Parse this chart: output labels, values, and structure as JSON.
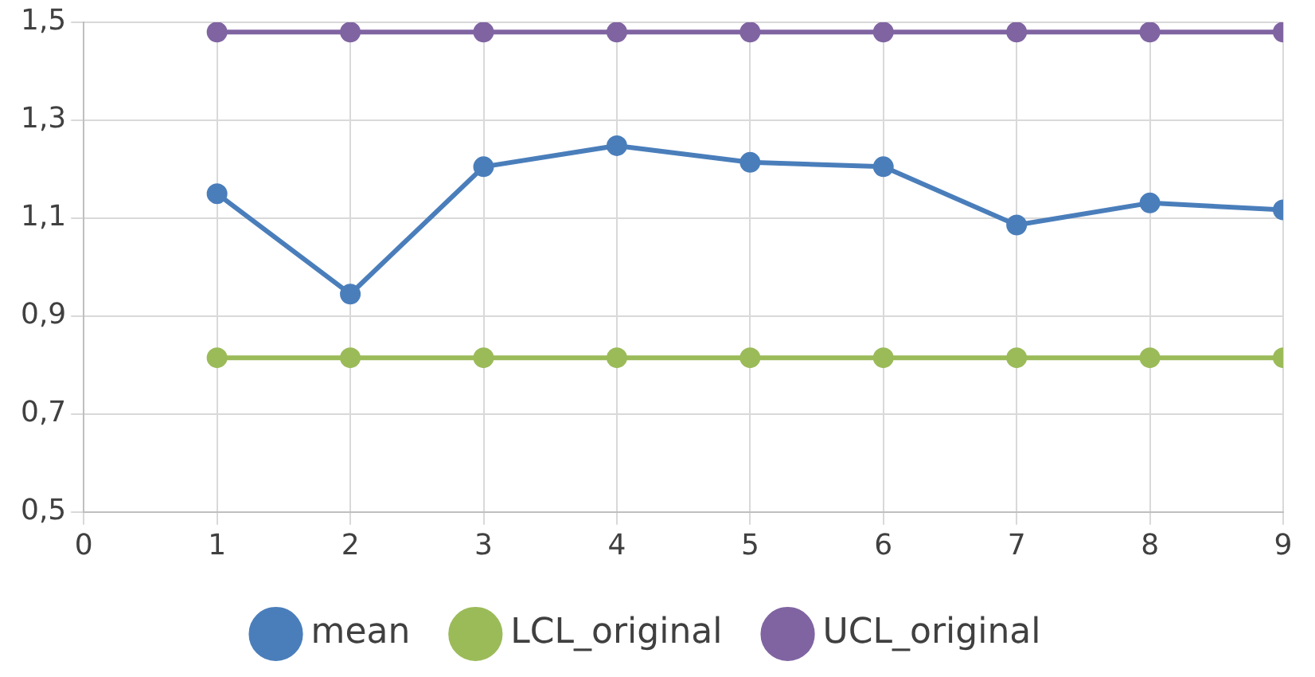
{
  "chart_data": {
    "type": "line",
    "x": [
      1,
      2,
      3,
      4,
      5,
      6,
      7,
      8,
      9
    ],
    "series": [
      {
        "name": "mean",
        "color": "#4a7ebb",
        "values": [
          1.15,
          0.945,
          1.205,
          1.248,
          1.214,
          1.205,
          1.086,
          1.131,
          1.117
        ]
      },
      {
        "name": "LCL_original",
        "color": "#9bbb59",
        "values": [
          0.815,
          0.815,
          0.815,
          0.815,
          0.815,
          0.815,
          0.815,
          0.815,
          0.815
        ]
      },
      {
        "name": "UCL_original",
        "color": "#8064a2",
        "values": [
          1.48,
          1.48,
          1.48,
          1.48,
          1.48,
          1.48,
          1.48,
          1.48,
          1.48
        ]
      }
    ],
    "xlim": [
      0,
      9
    ],
    "xticks": [
      0,
      1,
      2,
      3,
      4,
      5,
      6,
      7,
      8,
      9
    ],
    "ylim": [
      0.5,
      1.5
    ],
    "yticks": [
      {
        "value": 0.5,
        "label": "0,5"
      },
      {
        "value": 0.7,
        "label": "0,7"
      },
      {
        "value": 0.9,
        "label": "0,9"
      },
      {
        "value": 1.1,
        "label": "1,1"
      },
      {
        "value": 1.3,
        "label": "1,3"
      },
      {
        "value": 1.5,
        "label": "1,5"
      }
    ],
    "grid": true,
    "legend": "bottom",
    "marker": "circle",
    "line_style": "solid"
  }
}
